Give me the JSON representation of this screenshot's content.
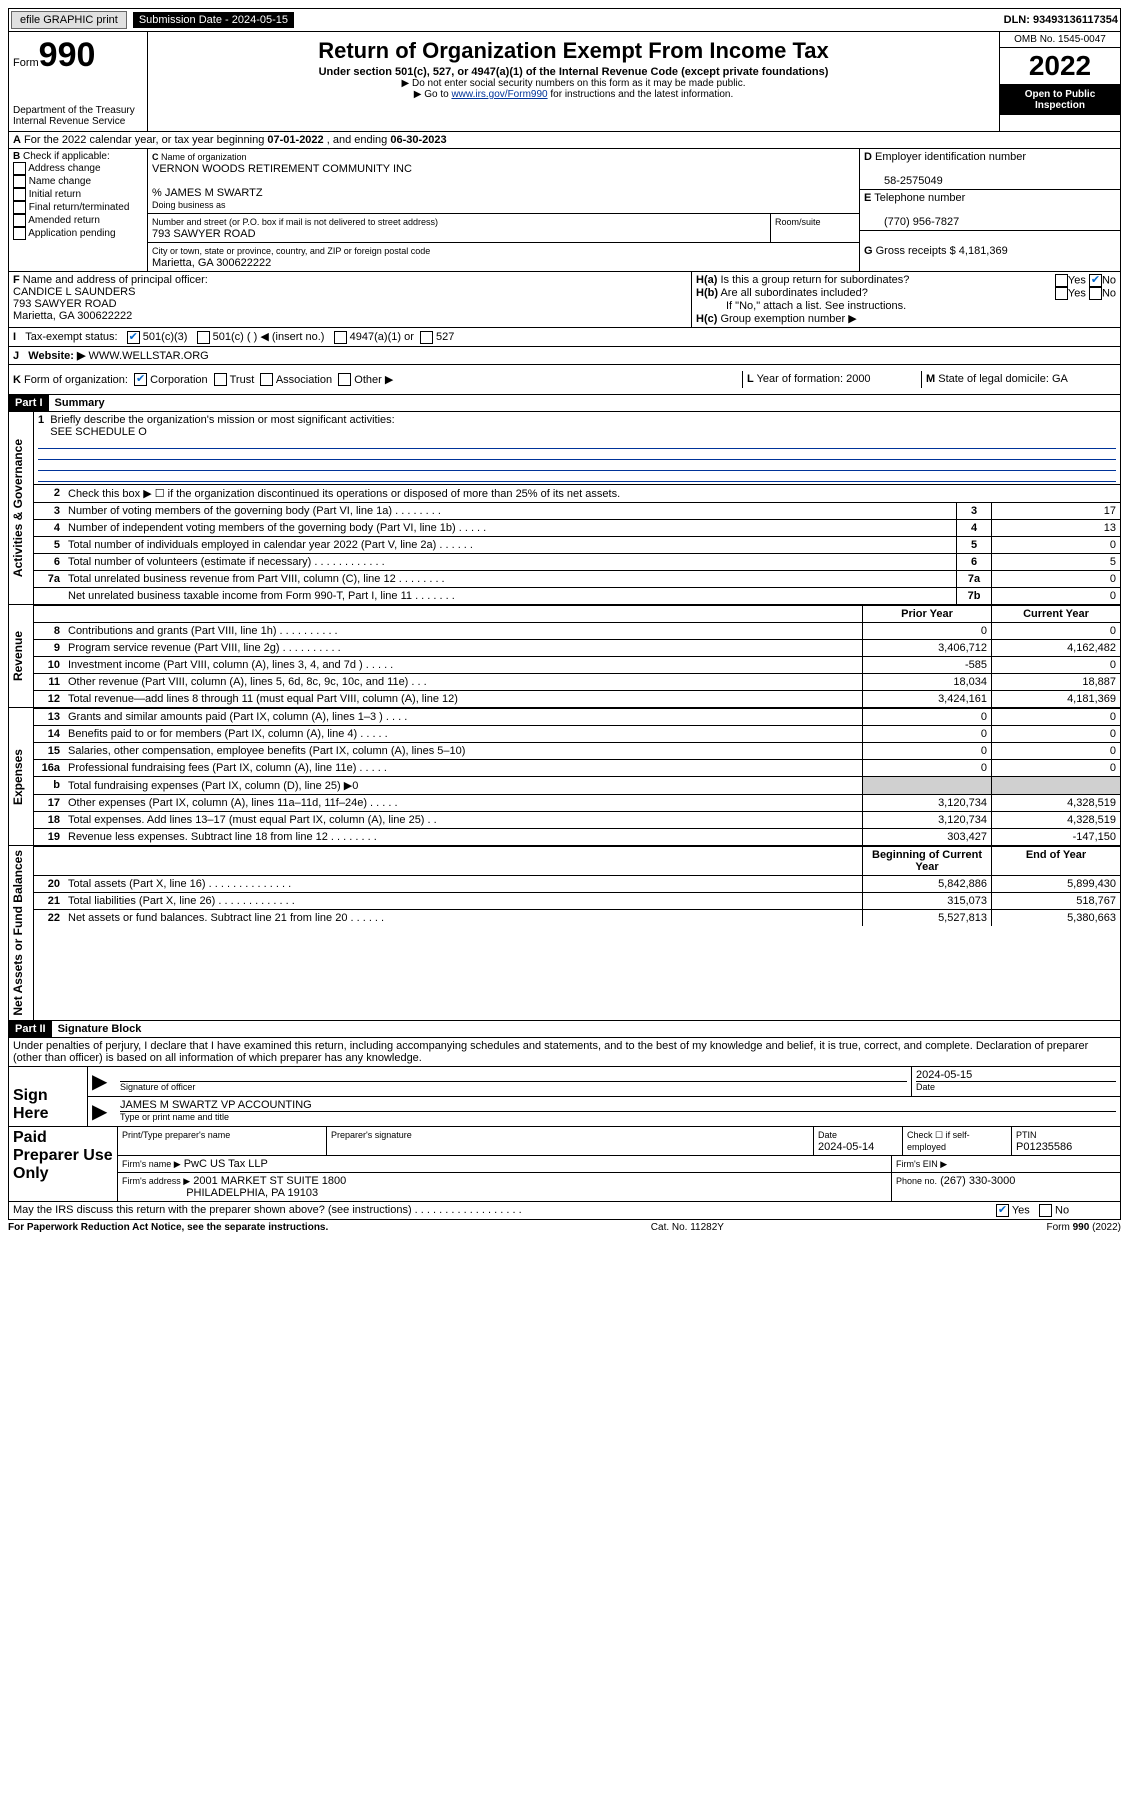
{
  "top": {
    "efile": "efile GRAPHIC print",
    "submission": "Submission Date - 2024-05-15",
    "dln": "DLN: 93493136117354"
  },
  "header": {
    "form_label": "Form",
    "form_number": "990",
    "dept": "Department of the Treasury",
    "irs": "Internal Revenue Service",
    "title": "Return of Organization Exempt From Income Tax",
    "subtitle": "Under section 501(c), 527, or 4947(a)(1) of the Internal Revenue Code (except private foundations)",
    "note1": "▶ Do not enter social security numbers on this form as it may be made public.",
    "note2_pre": "▶ Go to ",
    "note2_link": "www.irs.gov/Form990",
    "note2_post": " for instructions and the latest information.",
    "omb": "OMB No. 1545-0047",
    "year": "2022",
    "open": "Open to Public Inspection"
  },
  "period": {
    "label_a": "For the 2022 calendar year, or tax year beginning ",
    "begin": "07-01-2022",
    "mid": " , and ending ",
    "end": "06-30-2023"
  },
  "sectionB": {
    "label": "Check if applicable:",
    "items": [
      "Address change",
      "Name change",
      "Initial return",
      "Final return/terminated",
      "Amended return",
      "Application pending"
    ]
  },
  "sectionC": {
    "name_label": "Name of organization",
    "name": "VERNON WOODS RETIREMENT COMMUNITY INC",
    "care_of": "% JAMES M SWARTZ",
    "dba_label": "Doing business as",
    "addr_label": "Number and street (or P.O. box if mail is not delivered to street address)",
    "room_label": "Room/suite",
    "addr": "793 SAWYER ROAD",
    "city_label": "City or town, state or province, country, and ZIP or foreign postal code",
    "city": "Marietta, GA  300622222"
  },
  "sectionD": {
    "ein_label": "Employer identification number",
    "ein": "58-2575049",
    "phone_label": "Telephone number",
    "phone": "(770) 956-7827",
    "gross_label": "Gross receipts $",
    "gross": "4,181,369"
  },
  "sectionF": {
    "label": "Name and address of principal officer:",
    "name": "CANDICE L SAUNDERS",
    "addr": "793 SAWYER ROAD",
    "city": "Marietta, GA  300622222"
  },
  "sectionH": {
    "a": "Is this a group return for subordinates?",
    "b": "Are all subordinates included?",
    "note": "If \"No,\" attach a list. See instructions.",
    "c": "Group exemption number ▶"
  },
  "sectionI": {
    "label": "Tax-exempt status:",
    "opt1": "501(c)(3)",
    "opt2": "501(c) (   ) ◀ (insert no.)",
    "opt3": "4947(a)(1) or",
    "opt4": "527"
  },
  "sectionJ": {
    "label": "Website: ▶",
    "value": "WWW.WELLSTAR.ORG"
  },
  "sectionK": {
    "label": "Form of organization:",
    "opts": [
      "Corporation",
      "Trust",
      "Association",
      "Other ▶"
    ]
  },
  "sectionL": {
    "label": "Year of formation:",
    "value": "2000"
  },
  "sectionM": {
    "label": "State of legal domicile:",
    "value": "GA"
  },
  "part1": {
    "header": "Part I",
    "title": "Summary",
    "side_gov": "Activities & Governance",
    "side_rev": "Revenue",
    "side_exp": "Expenses",
    "side_net": "Net Assets or Fund Balances",
    "line1": "Briefly describe the organization's mission or most significant activities:",
    "line1_val": "SEE SCHEDULE O",
    "line2": "Check this box ▶ ☐  if the organization discontinued its operations or disposed of more than 25% of its net assets.",
    "col_prior": "Prior Year",
    "col_current": "Current Year",
    "col_boy": "Beginning of Current Year",
    "col_eoy": "End of Year",
    "rows_top": [
      {
        "n": "3",
        "t": "Number of voting members of the governing body (Part VI, line 1a)  .  .  .  .  .  .  .  .",
        "b": "3",
        "v": "17"
      },
      {
        "n": "4",
        "t": "Number of independent voting members of the governing body (Part VI, line 1b)  .  .  .  .  .",
        "b": "4",
        "v": "13"
      },
      {
        "n": "5",
        "t": "Total number of individuals employed in calendar year 2022 (Part V, line 2a)  .  .  .  .  .  .",
        "b": "5",
        "v": "0"
      },
      {
        "n": "6",
        "t": "Total number of volunteers (estimate if necessary)  .  .  .  .  .  .  .  .  .  .  .  .",
        "b": "6",
        "v": "5"
      },
      {
        "n": "7a",
        "t": "Total unrelated business revenue from Part VIII, column (C), line 12  .  .  .  .  .  .  .  .",
        "b": "7a",
        "v": "0"
      },
      {
        "n": "",
        "t": "Net unrelated business taxable income from Form 990-T, Part I, line 11  .  .  .  .  .  .  .",
        "b": "7b",
        "v": "0"
      }
    ],
    "rows_rev": [
      {
        "n": "8",
        "t": "Contributions and grants (Part VIII, line 1h)  .  .  .  .  .  .  .  .  .  .",
        "p": "0",
        "c": "0"
      },
      {
        "n": "9",
        "t": "Program service revenue (Part VIII, line 2g)  .  .  .  .  .  .  .  .  .  .",
        "p": "3,406,712",
        "c": "4,162,482"
      },
      {
        "n": "10",
        "t": "Investment income (Part VIII, column (A), lines 3, 4, and 7d )  .  .  .  .  .",
        "p": "-585",
        "c": "0"
      },
      {
        "n": "11",
        "t": "Other revenue (Part VIII, column (A), lines 5, 6d, 8c, 9c, 10c, and 11e)  .  .  .",
        "p": "18,034",
        "c": "18,887"
      },
      {
        "n": "12",
        "t": "Total revenue—add lines 8 through 11 (must equal Part VIII, column (A), line 12)",
        "p": "3,424,161",
        "c": "4,181,369"
      }
    ],
    "rows_exp": [
      {
        "n": "13",
        "t": "Grants and similar amounts paid (Part IX, column (A), lines 1–3 )  .  .  .  .",
        "p": "0",
        "c": "0"
      },
      {
        "n": "14",
        "t": "Benefits paid to or for members (Part IX, column (A), line 4)  .  .  .  .  .",
        "p": "0",
        "c": "0"
      },
      {
        "n": "15",
        "t": "Salaries, other compensation, employee benefits (Part IX, column (A), lines 5–10)",
        "p": "0",
        "c": "0"
      },
      {
        "n": "16a",
        "t": "Professional fundraising fees (Part IX, column (A), line 11e)  .  .  .  .  .",
        "p": "0",
        "c": "0"
      },
      {
        "n": "b",
        "t": "Total fundraising expenses (Part IX, column (D), line 25) ▶0",
        "p": "",
        "c": "",
        "shaded": true
      },
      {
        "n": "17",
        "t": "Other expenses (Part IX, column (A), lines 11a–11d, 11f–24e)  .  .  .  .  .",
        "p": "3,120,734",
        "c": "4,328,519"
      },
      {
        "n": "18",
        "t": "Total expenses. Add lines 13–17 (must equal Part IX, column (A), line 25)  .  .",
        "p": "3,120,734",
        "c": "4,328,519"
      },
      {
        "n": "19",
        "t": "Revenue less expenses. Subtract line 18 from line 12  .  .  .  .  .  .  .  .",
        "p": "303,427",
        "c": "-147,150"
      }
    ],
    "rows_net": [
      {
        "n": "20",
        "t": "Total assets (Part X, line 16)  .  .  .  .  .  .  .  .  .  .  .  .  .  .",
        "p": "5,842,886",
        "c": "5,899,430"
      },
      {
        "n": "21",
        "t": "Total liabilities (Part X, line 26)  .  .  .  .  .  .  .  .  .  .  .  .  .",
        "p": "315,073",
        "c": "518,767"
      },
      {
        "n": "22",
        "t": "Net assets or fund balances. Subtract line 21 from line 20  .  .  .  .  .  .",
        "p": "5,527,813",
        "c": "5,380,663"
      }
    ]
  },
  "part2": {
    "header": "Part II",
    "title": "Signature Block",
    "declaration": "Under penalties of perjury, I declare that I have examined this return, including accompanying schedules and statements, and to the best of my knowledge and belief, it is true, correct, and complete. Declaration of preparer (other than officer) is based on all information of which preparer has any knowledge.",
    "sign_here": "Sign Here",
    "sig_officer": "Signature of officer",
    "date": "Date",
    "date_val": "2024-05-15",
    "officer_name": "JAMES M SWARTZ VP ACCOUNTING",
    "type_name": "Type or print name and title",
    "paid": "Paid Preparer Use Only",
    "prep_name_label": "Print/Type preparer's name",
    "prep_sig_label": "Preparer's signature",
    "prep_date_label": "Date",
    "prep_date": "2024-05-14",
    "check_self": "Check ☐ if self-employed",
    "ptin_label": "PTIN",
    "ptin": "P01235586",
    "firm_name_label": "Firm's name    ▶",
    "firm_name": "PwC US Tax LLP",
    "firm_ein_label": "Firm's EIN ▶",
    "firm_addr_label": "Firm's address ▶",
    "firm_addr1": "2001 MARKET ST SUITE 1800",
    "firm_addr2": "PHILADELPHIA, PA  19103",
    "firm_phone_label": "Phone no.",
    "firm_phone": "(267) 330-3000",
    "discuss": "May the IRS discuss this return with the preparer shown above? (see instructions)  .  .  .  .  .  .  .  .  .  .  .  .  .  .  .  .  .  ."
  },
  "footer": {
    "left": "For Paperwork Reduction Act Notice, see the separate instructions.",
    "center": "Cat. No. 11282Y",
    "right": "Form 990 (2022)"
  }
}
